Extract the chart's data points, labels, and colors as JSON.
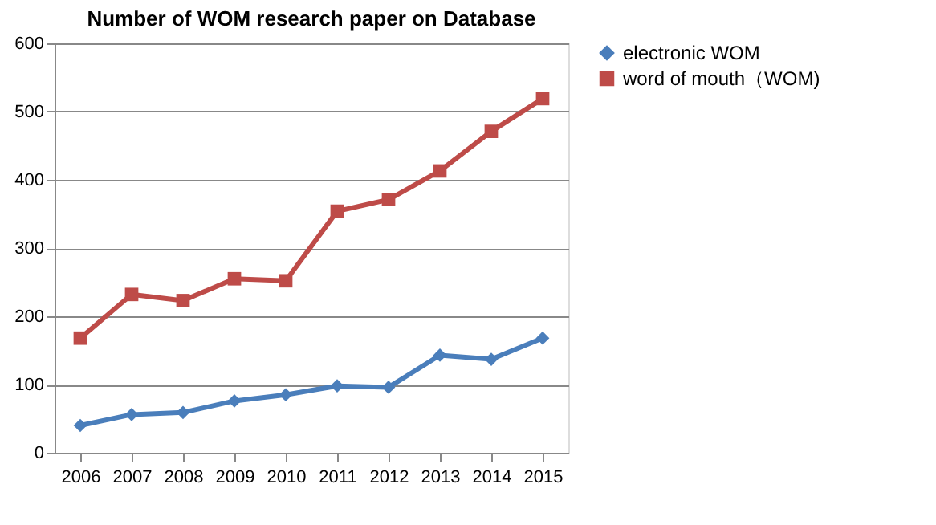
{
  "chart_data": {
    "type": "line",
    "title": "Number of WOM research paper on Database",
    "categories": [
      "2006",
      "2007",
      "2008",
      "2009",
      "2010",
      "2011",
      "2012",
      "2013",
      "2014",
      "2015"
    ],
    "series": [
      {
        "name": "electronic WOM",
        "color": "#4a7ebb",
        "marker": "diamond",
        "values": [
          40,
          56,
          59,
          76,
          85,
          98,
          96,
          143,
          137,
          168
        ]
      },
      {
        "name": "word of mouth（WOM)",
        "color": "#be4b48",
        "marker": "square",
        "values": [
          168,
          232,
          223,
          255,
          252,
          354,
          371,
          413,
          471,
          519
        ]
      }
    ],
    "ylim": [
      0,
      600
    ],
    "yticks": [
      0,
      100,
      200,
      300,
      400,
      500,
      600
    ],
    "grid": "y",
    "legend": "right",
    "line_style": "solid"
  }
}
